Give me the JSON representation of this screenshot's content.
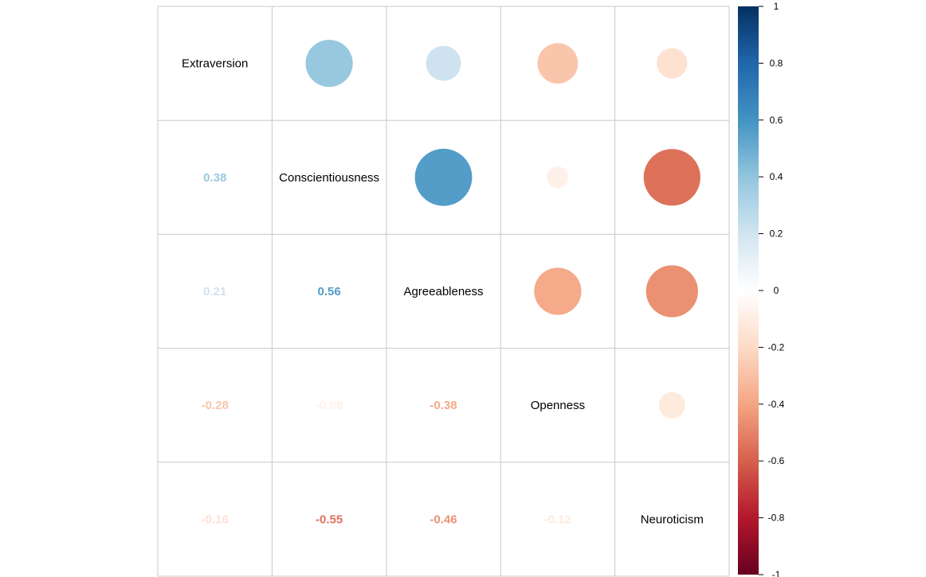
{
  "chart_data": {
    "type": "correlation_matrix",
    "variables": [
      "Extraversion",
      "Conscientiousness",
      "Agreeableness",
      "Openness",
      "Neuroticism"
    ],
    "matrix": [
      [
        1.0,
        0.38,
        0.21,
        -0.28,
        -0.16
      ],
      [
        0.38,
        1.0,
        0.56,
        -0.08,
        -0.55
      ],
      [
        0.21,
        0.56,
        1.0,
        -0.38,
        -0.46
      ],
      [
        -0.28,
        -0.08,
        -0.38,
        1.0,
        -0.12
      ],
      [
        -0.16,
        -0.55,
        -0.46,
        -0.12,
        1.0
      ]
    ],
    "upper_method": "circle",
    "lower_method": "number",
    "diagonal": "variable names",
    "number_labels": [
      "0.38",
      "0.21",
      "-0.28",
      "-0.16",
      "0.56",
      "-0.08",
      "-0.55",
      "-0.38",
      "-0.46",
      "-0.12"
    ],
    "colorbar": {
      "range": [
        -1,
        1
      ],
      "ticks": [
        1,
        0.8,
        0.6,
        0.4,
        0.2,
        0,
        -0.2,
        -0.4,
        -0.6,
        -0.8,
        -1
      ],
      "tick_labels": [
        "1",
        "0.8",
        "0.6",
        "0.4",
        "0.2",
        "0",
        "-0.2",
        "-0.4",
        "-0.6",
        "-0.8",
        "-1"
      ],
      "palette": [
        "#67001F",
        "#B2182B",
        "#D6604D",
        "#F4A582",
        "#FDDBC7",
        "#FFFFFF",
        "#D1E5F0",
        "#92C5DE",
        "#4393C3",
        "#2166AC",
        "#053061"
      ]
    },
    "grid": true,
    "legend_placement": "right"
  }
}
